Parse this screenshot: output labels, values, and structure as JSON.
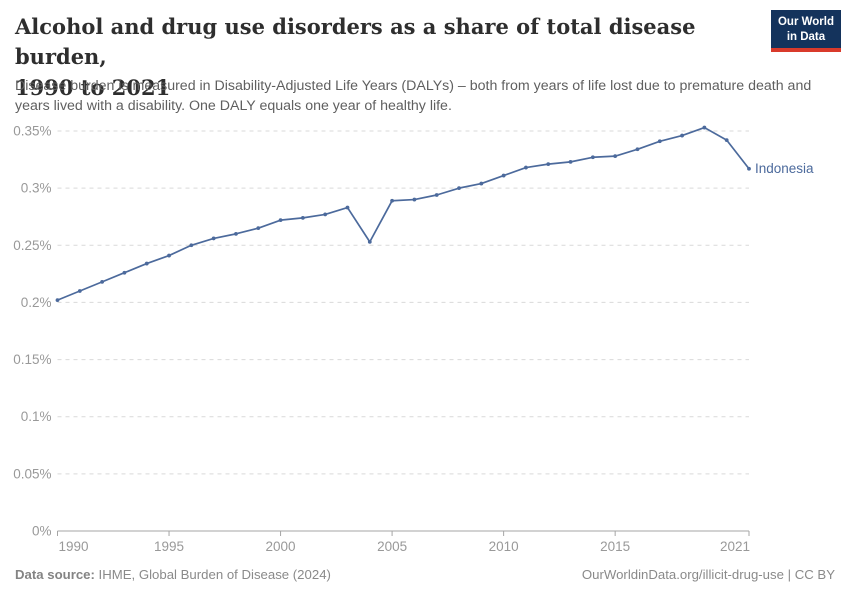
{
  "header": {
    "title_line1": "Alcohol and drug use disorders as a share of total disease burden,",
    "title_line2": "1990 to 2021",
    "subtitle": "Disease burden is measured in Disability-Adjusted Life Years (DALYs) – both from years of life lost due to premature death and years lived with a disability. One DALY equals one year of healthy life.",
    "logo": {
      "line1": "Our World",
      "line2": "in Data"
    }
  },
  "chart_data": {
    "type": "line",
    "title": "Alcohol and drug use disorders as a share of total disease burden, 1990 to 2021",
    "xlabel": "",
    "ylabel": "",
    "unit": "% of total disease burden (DALYs)",
    "xlim": [
      1990,
      2021
    ],
    "ylim": [
      0,
      0.35
    ],
    "grid": "horizontal-dashed",
    "legend_position": "line-end-label",
    "x_ticks": [
      1990,
      1995,
      2000,
      2005,
      2010,
      2015,
      2021
    ],
    "y_ticks": [
      {
        "value": 0,
        "label": "0%"
      },
      {
        "value": 0.05,
        "label": "0.05%"
      },
      {
        "value": 0.1,
        "label": "0.1%"
      },
      {
        "value": 0.15,
        "label": "0.15%"
      },
      {
        "value": 0.2,
        "label": "0.2%"
      },
      {
        "value": 0.25,
        "label": "0.25%"
      },
      {
        "value": 0.3,
        "label": "0.3%"
      },
      {
        "value": 0.35,
        "label": "0.35%"
      }
    ],
    "series": [
      {
        "name": "Indonesia",
        "color": "#4c6a9c",
        "years": [
          1990,
          1991,
          1992,
          1993,
          1994,
          1995,
          1996,
          1997,
          1998,
          1999,
          2000,
          2001,
          2002,
          2003,
          2004,
          2005,
          2006,
          2007,
          2008,
          2009,
          2010,
          2011,
          2012,
          2013,
          2014,
          2015,
          2016,
          2017,
          2018,
          2019,
          2020,
          2021
        ],
        "values": [
          0.202,
          0.21,
          0.218,
          0.226,
          0.234,
          0.241,
          0.25,
          0.256,
          0.26,
          0.265,
          0.272,
          0.274,
          0.277,
          0.283,
          0.253,
          0.289,
          0.29,
          0.294,
          0.3,
          0.304,
          0.311,
          0.318,
          0.321,
          0.323,
          0.327,
          0.328,
          0.334,
          0.341,
          0.346,
          0.353,
          0.342,
          0.317
        ]
      }
    ]
  },
  "footer": {
    "source_label": "Data source:",
    "source_text": " IHME, Global Burden of Disease (2024)",
    "attribution": "OurWorldinData.org/illicit-drug-use | CC BY"
  },
  "colors": {
    "line": "#4c6a9c",
    "grid": "#d9d9d9",
    "axis": "#a5a5a5",
    "tick_text": "#999999",
    "logo_bg": "#14335c",
    "logo_accent": "#d93a2b"
  }
}
